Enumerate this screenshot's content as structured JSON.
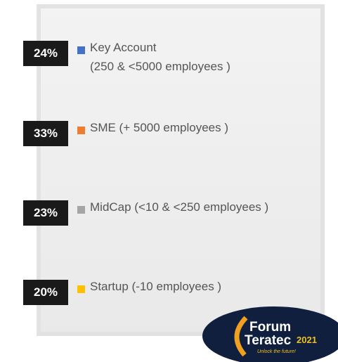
{
  "items": [
    {
      "percent": "24%",
      "color": "#4472c4",
      "lines": [
        "Key Account",
        "(250 & <5000 employees )"
      ]
    },
    {
      "percent": "33%",
      "color": "#ed7d31",
      "lines": [
        "SME (+ 5000 employees )"
      ]
    },
    {
      "percent": "23%",
      "color": "#a5a5a5",
      "lines": [
        "MidCap (<10 & <250 employees )"
      ]
    },
    {
      "percent": "20%",
      "color": "#ffc000",
      "lines": [
        "Startup (-10 employees )"
      ]
    }
  ],
  "logo": {
    "line1": "Forum",
    "line2": "Teratec",
    "year": "2021",
    "tagline": "Unlock the future!"
  }
}
